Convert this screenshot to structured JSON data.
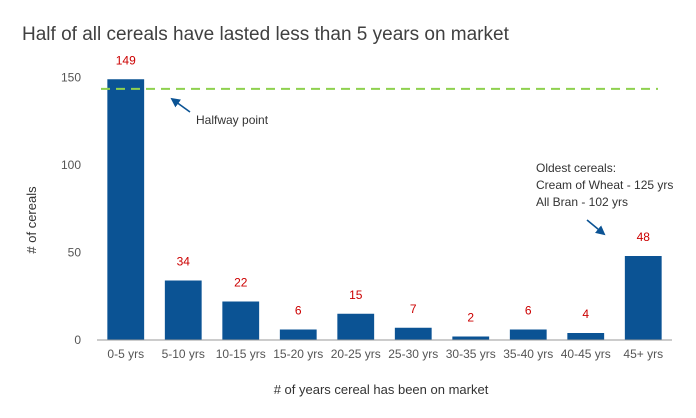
{
  "chart_data": {
    "type": "bar",
    "title": "Half of all cereals have lasted less than 5 years on market",
    "xlabel": "# of years cereal has been on market",
    "ylabel": "# of cereals",
    "categories": [
      "0-5 yrs",
      "5-10 yrs",
      "10-15 yrs",
      "15-20 yrs",
      "20-25 yrs",
      "25-30 yrs",
      "30-35 yrs",
      "35-40 yrs",
      "40-45 yrs",
      "45+ yrs"
    ],
    "values": [
      149,
      34,
      22,
      6,
      15,
      7,
      2,
      6,
      4,
      48
    ],
    "data_labels": [
      "149",
      "34",
      "22",
      "6",
      "15",
      "7",
      "2",
      "6",
      "4",
      "48"
    ],
    "ylim": [
      0,
      160
    ],
    "yticks": [
      0,
      50,
      100,
      150
    ],
    "ytick_labels": [
      "0",
      "50",
      "100",
      "150"
    ],
    "grid": false,
    "legend": "none",
    "reference_line": {
      "value": 143.5,
      "style": "dashed"
    },
    "annotations": {
      "halfway": "Halfway point",
      "oldest_title": "Oldest cereals:",
      "oldest_line1": "Cream of Wheat - 125 yrs",
      "oldest_line2": "All Bran - 102 yrs"
    },
    "colors": {
      "bar": "#0b5394",
      "value_label": "#cc0000",
      "reference_line": "#8fd14f",
      "arrow": "#0b5394",
      "axis": "#999999"
    }
  }
}
